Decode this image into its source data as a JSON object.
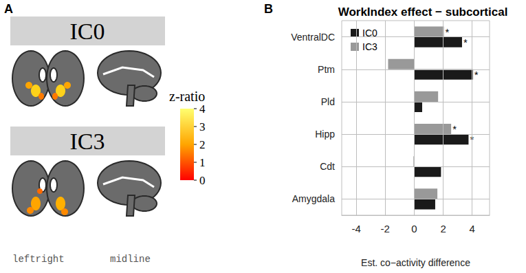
{
  "panel_a": {
    "panel_label": "A",
    "images": [
      {
        "title": "IC0"
      },
      {
        "title": "IC3"
      }
    ],
    "colorbar": {
      "title": "z-ratio",
      "range": [
        0,
        4
      ],
      "ticks": [
        0,
        1,
        2,
        3,
        4
      ]
    },
    "view_labels": [
      "leftright",
      "midline"
    ]
  },
  "chart_data": {
    "panel_label": "B",
    "type": "bar",
    "title": "WorkIndex effect − subcortical",
    "orientation": "horizontal",
    "categories": [
      "VentralDC",
      "Ptm",
      "Pld",
      "Hipp",
      "Cdt",
      "Amygdala"
    ],
    "series": [
      {
        "name": "IC0",
        "color": "#1a1a1a",
        "values": [
          3.3,
          4.05,
          0.55,
          3.75,
          1.85,
          1.45
        ],
        "annotations": [
          "*",
          "*",
          null,
          "*",
          null,
          null
        ]
      },
      {
        "name": "IC3",
        "color": "#999999",
        "values": [
          2.05,
          -1.8,
          1.65,
          2.55,
          -0.05,
          1.6
        ],
        "annotations": [
          "*",
          null,
          null,
          "*",
          null,
          null
        ]
      }
    ],
    "x_label": "Est. co−activity difference",
    "xlim": [
      -5,
      5.2
    ],
    "xticks": [
      -4,
      -2,
      0,
      2,
      4
    ],
    "grid": true,
    "legend": "upper left"
  }
}
